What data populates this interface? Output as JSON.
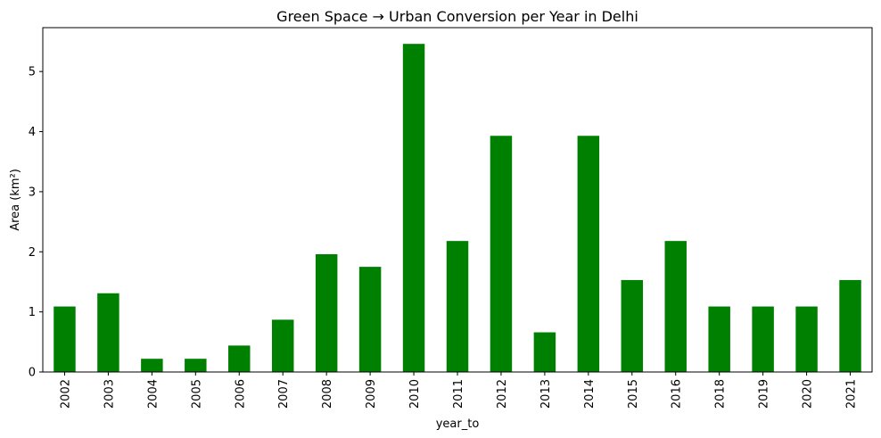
{
  "chart_data": {
    "type": "bar",
    "title": "Green Space → Urban Conversion per Year in Delhi",
    "xlabel": "year_to",
    "ylabel": "Area (km²)",
    "categories": [
      "2002",
      "2003",
      "2004",
      "2005",
      "2006",
      "2007",
      "2008",
      "2009",
      "2010",
      "2011",
      "2012",
      "2013",
      "2014",
      "2015",
      "2016",
      "2018",
      "2019",
      "2020",
      "2021"
    ],
    "values": [
      1.09,
      1.31,
      0.22,
      0.22,
      0.44,
      0.87,
      1.96,
      1.75,
      5.46,
      2.18,
      3.93,
      0.66,
      3.93,
      1.53,
      2.18,
      1.09,
      1.09,
      1.09,
      1.53
    ],
    "ylim": [
      0,
      5.73
    ],
    "yticks": [
      0,
      1,
      2,
      3,
      4,
      5
    ],
    "bar_color": "#008000",
    "grid": false,
    "legend": "none"
  }
}
